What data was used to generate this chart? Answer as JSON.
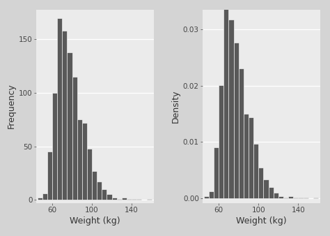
{
  "bin_edges": [
    45,
    50,
    55,
    60,
    65,
    70,
    75,
    80,
    85,
    90,
    95,
    100,
    105,
    110,
    115,
    120,
    125,
    130,
    135,
    140,
    145,
    150,
    155,
    160
  ],
  "frequencies": [
    2,
    6,
    45,
    100,
    170,
    158,
    138,
    115,
    75,
    72,
    48,
    27,
    17,
    10,
    5,
    2,
    1,
    2,
    1,
    1,
    1,
    0,
    1
  ],
  "bar_color": "#595959",
  "bar_edgecolor": "#ffffff",
  "bar_linewidth": 0.4,
  "bg_color": "#ebebeb",
  "outer_bg": "#d4d4d4",
  "strip_bg": "#d4d4d4",
  "xlabel": "Weight (kg)",
  "ylabel_left": "Frequency",
  "ylabel_right": "Density",
  "xticks": [
    60,
    100,
    140
  ],
  "yticks_freq": [
    0,
    50,
    100,
    150
  ],
  "yticks_dens": [
    0.0,
    0.01,
    0.02,
    0.03
  ],
  "xlim": [
    44,
    162
  ],
  "ylim_freq": [
    -3,
    178
  ],
  "ylim_dens": [
    -0.0008,
    0.0335
  ],
  "grid_color": "#ffffff",
  "grid_linewidth": 0.9,
  "tick_labelsize": 7.5,
  "axis_labelsize": 9
}
